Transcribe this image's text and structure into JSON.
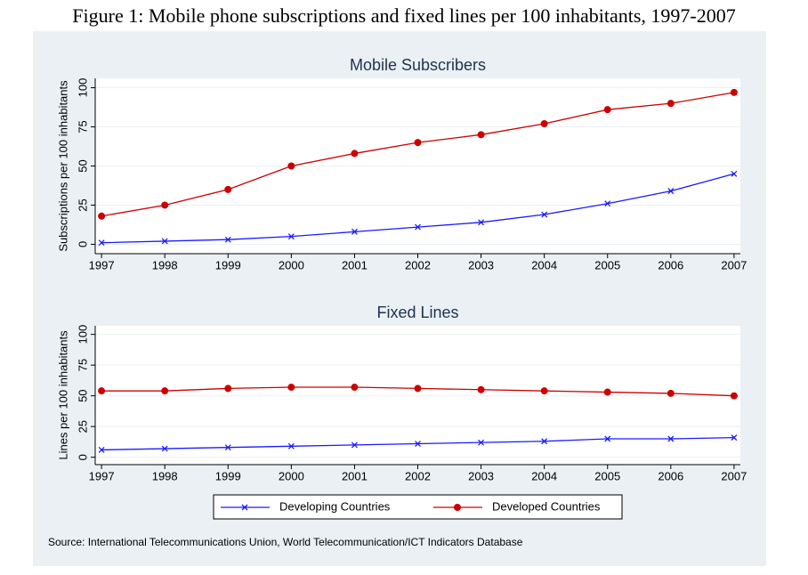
{
  "figure_title": "Figure 1: Mobile phone subscriptions and fixed lines per 100 inhabitants, 1997-2007",
  "source": "Source: International Telecommunications Union, World Telecommunication/ICT Indicators Database",
  "chart_data": [
    {
      "type": "line",
      "title": "Mobile Subscribers",
      "y_label": "Subscriptions per 100 inhabitants",
      "x": [
        1997,
        1998,
        1999,
        2000,
        2001,
        2002,
        2003,
        2004,
        2005,
        2006,
        2007
      ],
      "xlim": [
        1996.9,
        2007.1
      ],
      "xticks": [
        1997,
        1998,
        1999,
        2000,
        2001,
        2002,
        2003,
        2004,
        2005,
        2006,
        2007
      ],
      "ylim": [
        -6,
        106
      ],
      "yticks": [
        0,
        25,
        50,
        75,
        100
      ],
      "grid": true,
      "series": [
        {
          "name": "Developing Countries",
          "color": "#1a1aff",
          "marker": "x",
          "values": [
            1,
            2,
            3,
            5,
            8,
            11,
            14,
            19,
            26,
            34,
            45
          ]
        },
        {
          "name": "Developed Countries",
          "color": "#cc0000",
          "marker": "circle",
          "values": [
            18,
            25,
            35,
            50,
            58,
            65,
            70,
            77,
            86,
            90,
            97
          ]
        }
      ]
    },
    {
      "type": "line",
      "title": "Fixed Lines",
      "y_label": "Lines per 100 inhabitants",
      "x": [
        1997,
        1998,
        1999,
        2000,
        2001,
        2002,
        2003,
        2004,
        2005,
        2006,
        2007
      ],
      "xlim": [
        1996.9,
        2007.1
      ],
      "xticks": [
        1997,
        1998,
        1999,
        2000,
        2001,
        2002,
        2003,
        2004,
        2005,
        2006,
        2007
      ],
      "ylim": [
        -6,
        107
      ],
      "yticks": [
        0,
        25,
        50,
        75,
        100
      ],
      "grid": true,
      "series": [
        {
          "name": "Developing Countries",
          "color": "#1a1aff",
          "marker": "x",
          "values": [
            6,
            7,
            8,
            9,
            10,
            11,
            12,
            13,
            15,
            15,
            16
          ]
        },
        {
          "name": "Developed Countries",
          "color": "#cc0000",
          "marker": "circle",
          "values": [
            54,
            54,
            56,
            57,
            57,
            56,
            55,
            54,
            53,
            52,
            50
          ]
        }
      ]
    }
  ]
}
